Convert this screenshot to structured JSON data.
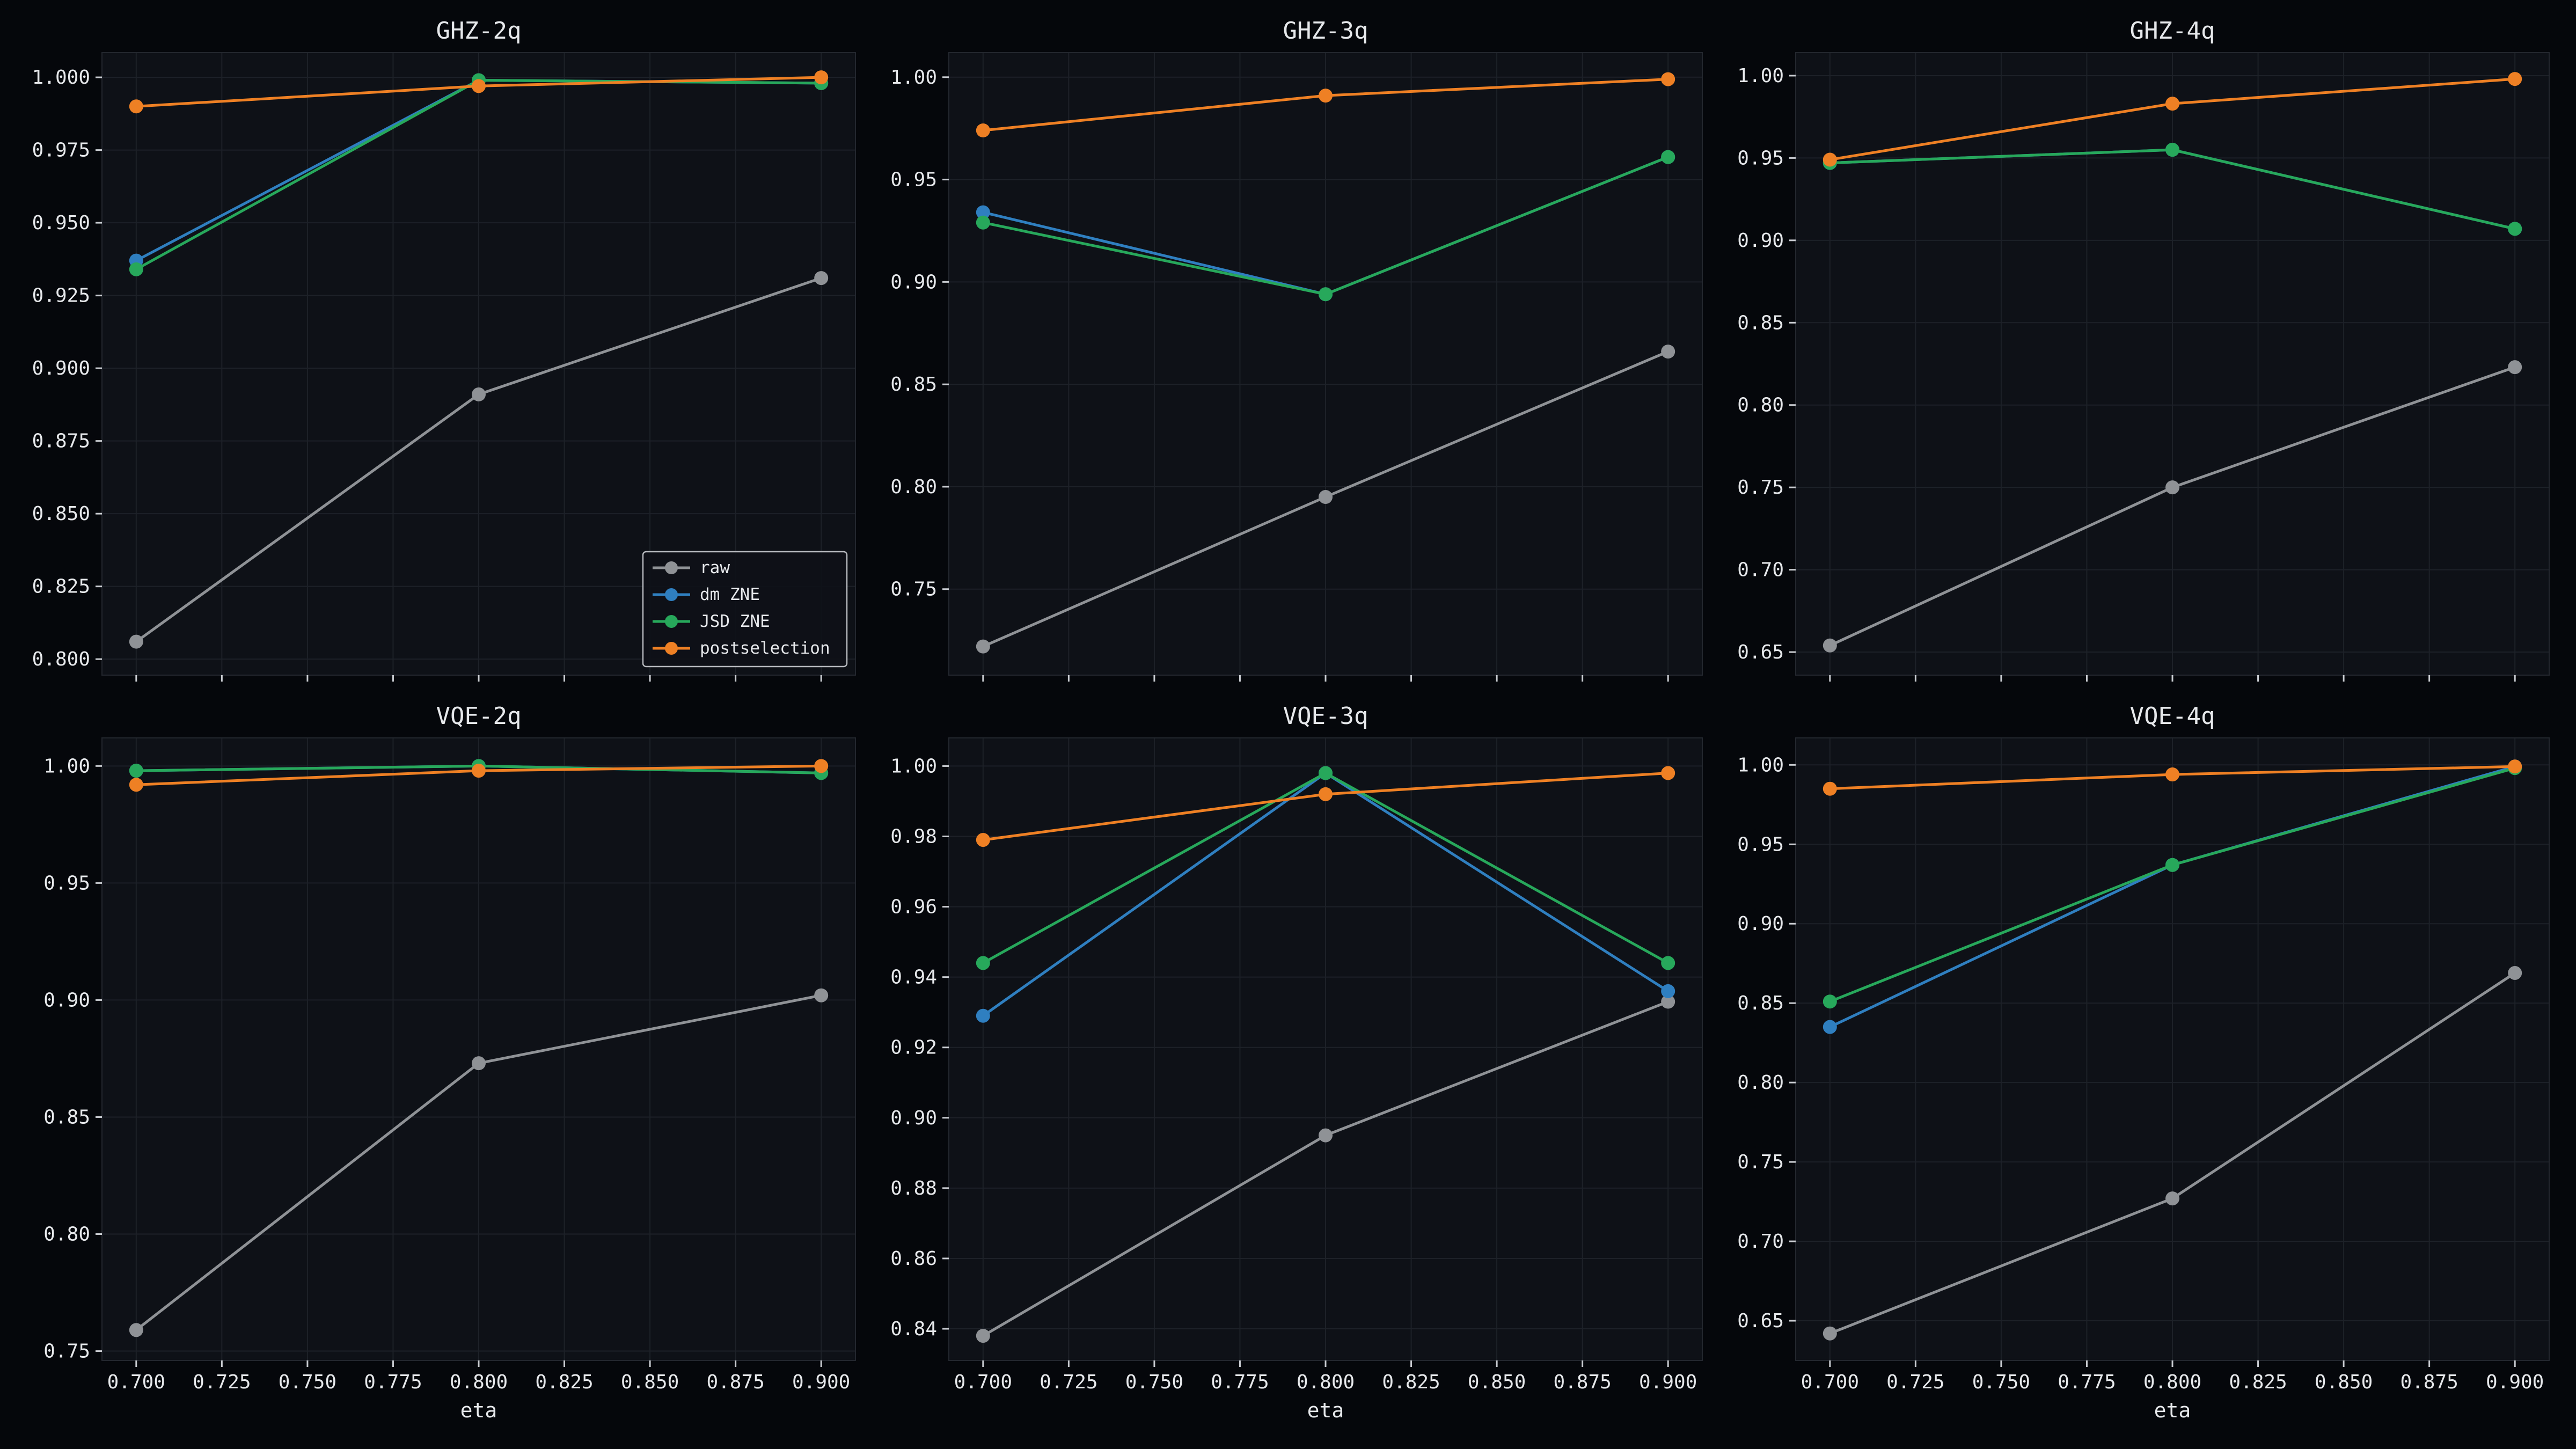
{
  "figure": {
    "background": "#05070b",
    "panel_background": "#0e1117"
  },
  "legend": {
    "location": "lower right",
    "panel": 0,
    "entries": [
      "raw",
      "dm ZNE",
      "JSD ZNE",
      "postselection"
    ]
  },
  "series_colors": {
    "raw": "#8f9296",
    "dm ZNE": "#2f7fc0",
    "JSD ZNE": "#27a85b",
    "postselection": "#ee8024"
  },
  "chart_data": [
    {
      "type": "line",
      "title": "GHZ-2q",
      "xlabel": "",
      "ylabel": "",
      "xlim": [
        0.69,
        0.91
      ],
      "ylim": [
        0.7945,
        1.0085
      ],
      "x_ticks": [
        0.7,
        0.725,
        0.75,
        0.775,
        0.8,
        0.825,
        0.85,
        0.875,
        0.9
      ],
      "x_tick_labels": [],
      "y_ticks": [
        0.8,
        0.825,
        0.85,
        0.875,
        0.9,
        0.925,
        0.95,
        0.975,
        1.0
      ],
      "y_tick_labels": [
        "0.800",
        "0.825",
        "0.850",
        "0.875",
        "0.900",
        "0.925",
        "0.950",
        "0.975",
        "1.000"
      ],
      "x": [
        0.7,
        0.8,
        0.9
      ],
      "series": [
        {
          "name": "raw",
          "values": [
            0.806,
            0.891,
            0.931
          ]
        },
        {
          "name": "dm ZNE",
          "values": [
            0.937,
            0.999,
            0.998
          ]
        },
        {
          "name": "JSD ZNE",
          "values": [
            0.934,
            0.999,
            0.998
          ]
        },
        {
          "name": "postselection",
          "values": [
            0.99,
            0.997,
            1.0
          ]
        }
      ]
    },
    {
      "type": "line",
      "title": "GHZ-3q",
      "xlabel": "",
      "ylabel": "",
      "xlim": [
        0.69,
        0.91
      ],
      "ylim": [
        0.708,
        1.012
      ],
      "x_ticks": [
        0.7,
        0.725,
        0.75,
        0.775,
        0.8,
        0.825,
        0.85,
        0.875,
        0.9
      ],
      "x_tick_labels": [],
      "y_ticks": [
        0.75,
        0.8,
        0.85,
        0.9,
        0.95,
        1.0
      ],
      "y_tick_labels": [
        "0.75",
        "0.80",
        "0.85",
        "0.90",
        "0.95",
        "1.00"
      ],
      "x": [
        0.7,
        0.8,
        0.9
      ],
      "series": [
        {
          "name": "raw",
          "values": [
            0.722,
            0.795,
            0.866
          ]
        },
        {
          "name": "dm ZNE",
          "values": [
            0.934,
            0.894,
            0.961
          ]
        },
        {
          "name": "JSD ZNE",
          "values": [
            0.929,
            0.894,
            0.961
          ]
        },
        {
          "name": "postselection",
          "values": [
            0.974,
            0.991,
            0.999
          ]
        }
      ]
    },
    {
      "type": "line",
      "title": "GHZ-4q",
      "xlabel": "",
      "ylabel": "",
      "xlim": [
        0.69,
        0.91
      ],
      "ylim": [
        0.636,
        1.014
      ],
      "x_ticks": [
        0.7,
        0.725,
        0.75,
        0.775,
        0.8,
        0.825,
        0.85,
        0.875,
        0.9
      ],
      "x_tick_labels": [],
      "y_ticks": [
        0.65,
        0.7,
        0.75,
        0.8,
        0.85,
        0.9,
        0.95,
        1.0
      ],
      "y_tick_labels": [
        "0.65",
        "0.70",
        "0.75",
        "0.80",
        "0.85",
        "0.90",
        "0.95",
        "1.00"
      ],
      "x": [
        0.7,
        0.8,
        0.9
      ],
      "series": [
        {
          "name": "raw",
          "values": [
            0.654,
            0.75,
            0.823
          ]
        },
        {
          "name": "dm ZNE",
          "values": [
            0.947,
            0.955,
            0.907
          ]
        },
        {
          "name": "JSD ZNE",
          "values": [
            0.947,
            0.955,
            0.907
          ]
        },
        {
          "name": "postselection",
          "values": [
            0.949,
            0.983,
            0.998
          ]
        }
      ]
    },
    {
      "type": "line",
      "title": "VQE-2q",
      "xlabel": "eta",
      "ylabel": "",
      "xlim": [
        0.69,
        0.91
      ],
      "ylim": [
        0.746,
        1.012
      ],
      "x_ticks": [
        0.7,
        0.725,
        0.75,
        0.775,
        0.8,
        0.825,
        0.85,
        0.875,
        0.9
      ],
      "x_tick_labels": [
        "0.700",
        "0.725",
        "0.750",
        "0.775",
        "0.800",
        "0.825",
        "0.850",
        "0.875",
        "0.900"
      ],
      "y_ticks": [
        0.75,
        0.8,
        0.85,
        0.9,
        0.95,
        1.0
      ],
      "y_tick_labels": [
        "0.75",
        "0.80",
        "0.85",
        "0.90",
        "0.95",
        "1.00"
      ],
      "x": [
        0.7,
        0.8,
        0.9
      ],
      "series": [
        {
          "name": "raw",
          "values": [
            0.759,
            0.873,
            0.902
          ]
        },
        {
          "name": "dm ZNE",
          "values": [
            0.998,
            1.0,
            0.997
          ]
        },
        {
          "name": "JSD ZNE",
          "values": [
            0.998,
            1.0,
            0.997
          ]
        },
        {
          "name": "postselection",
          "values": [
            0.992,
            0.998,
            1.0
          ]
        }
      ]
    },
    {
      "type": "line",
      "title": "VQE-3q",
      "xlabel": "eta",
      "ylabel": "",
      "xlim": [
        0.69,
        0.91
      ],
      "ylim": [
        0.831,
        1.008
      ],
      "x_ticks": [
        0.7,
        0.725,
        0.75,
        0.775,
        0.8,
        0.825,
        0.85,
        0.875,
        0.9
      ],
      "x_tick_labels": [
        "0.700",
        "0.725",
        "0.750",
        "0.775",
        "0.800",
        "0.825",
        "0.850",
        "0.875",
        "0.900"
      ],
      "y_ticks": [
        0.84,
        0.86,
        0.88,
        0.9,
        0.92,
        0.94,
        0.96,
        0.98,
        1.0
      ],
      "y_tick_labels": [
        "0.84",
        "0.86",
        "0.88",
        "0.90",
        "0.92",
        "0.94",
        "0.96",
        "0.98",
        "1.00"
      ],
      "x": [
        0.7,
        0.8,
        0.9
      ],
      "series": [
        {
          "name": "raw",
          "values": [
            0.838,
            0.895,
            0.933
          ]
        },
        {
          "name": "dm ZNE",
          "values": [
            0.929,
            0.998,
            0.936
          ]
        },
        {
          "name": "JSD ZNE",
          "values": [
            0.944,
            0.998,
            0.944
          ]
        },
        {
          "name": "postselection",
          "values": [
            0.979,
            0.992,
            0.998
          ]
        }
      ]
    },
    {
      "type": "line",
      "title": "VQE-4q",
      "xlabel": "eta",
      "ylabel": "",
      "xlim": [
        0.69,
        0.91
      ],
      "ylim": [
        0.625,
        1.017
      ],
      "x_ticks": [
        0.7,
        0.725,
        0.75,
        0.775,
        0.8,
        0.825,
        0.85,
        0.875,
        0.9
      ],
      "x_tick_labels": [
        "0.700",
        "0.725",
        "0.750",
        "0.775",
        "0.800",
        "0.825",
        "0.850",
        "0.875",
        "0.900"
      ],
      "y_ticks": [
        0.65,
        0.7,
        0.75,
        0.8,
        0.85,
        0.9,
        0.95,
        1.0
      ],
      "y_tick_labels": [
        "0.65",
        "0.70",
        "0.75",
        "0.80",
        "0.85",
        "0.90",
        "0.95",
        "1.00"
      ],
      "x": [
        0.7,
        0.8,
        0.9
      ],
      "series": [
        {
          "name": "raw",
          "values": [
            0.642,
            0.727,
            0.869
          ]
        },
        {
          "name": "dm ZNE",
          "values": [
            0.835,
            0.937,
            0.999
          ]
        },
        {
          "name": "JSD ZNE",
          "values": [
            0.851,
            0.937,
            0.998
          ]
        },
        {
          "name": "postselection",
          "values": [
            0.985,
            0.994,
            0.999
          ]
        }
      ]
    }
  ]
}
